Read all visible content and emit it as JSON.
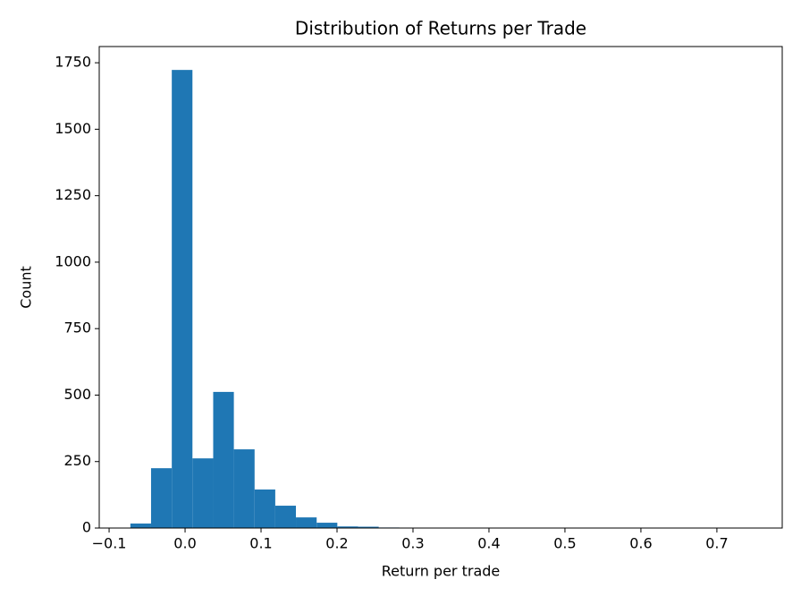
{
  "chart_data": {
    "type": "histogram",
    "title": "Distribution of Returns per Trade",
    "x_label": "Return per trade",
    "y_label": "Count",
    "color": "#1f77b4",
    "bins": [
      -0.072,
      -0.0448,
      -0.0175,
      0.0097,
      0.037,
      0.0642,
      0.0915,
      0.1187,
      0.1459,
      0.1732,
      0.2004,
      0.2277,
      0.2549,
      0.2821,
      0.3094,
      0.3366,
      0.3638,
      0.3911,
      0.4183,
      0.4456,
      0.4728,
      0.5,
      0.5273,
      0.5545,
      0.5818,
      0.609,
      0.6362,
      0.6635,
      0.6907,
      0.718,
      0.7452
    ],
    "values": [
      17,
      225,
      1723,
      262,
      512,
      296,
      145,
      84,
      40,
      20,
      6,
      5,
      2,
      1,
      1,
      0,
      0,
      0,
      0,
      0,
      0,
      0,
      0,
      0,
      0,
      0,
      0,
      0,
      0,
      1
    ],
    "xlim": [
      -0.113,
      0.786
    ],
    "ylim": [
      0,
      1811
    ],
    "xticks": [
      {
        "value": -0.1,
        "label": "−0.1"
      },
      {
        "value": 0,
        "label": "0.0"
      },
      0.1,
      0.2,
      0.3,
      0.4,
      0.5,
      0.6,
      0.7
    ],
    "yticks": [
      0,
      250,
      500,
      750,
      1000,
      1250,
      1500,
      1750
    ]
  }
}
